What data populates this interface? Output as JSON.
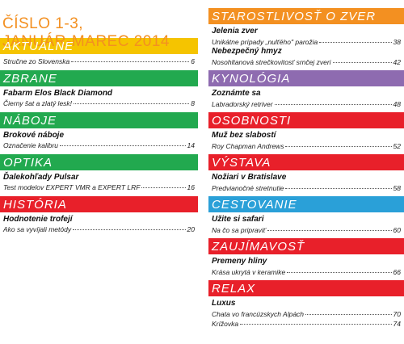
{
  "title": [
    "ČÍSLO 1-3,",
    "JANUÁR-MAREC 2014"
  ],
  "columns": [
    [
      {
        "heading": "AKTUÁLNE",
        "color": "#f5c400",
        "items": [
          {
            "subtitle": "Stručne zo Slovenska",
            "page": 6
          }
        ]
      },
      {
        "heading": "ZBRANE",
        "color": "#22a94f",
        "items": [
          {
            "title": "Fabarm Elos Black Diamond",
            "subtitle": "Čierny šat a zlatý lesk!",
            "page": 8
          }
        ]
      },
      {
        "heading": "NÁBOJE",
        "color": "#22a94f",
        "items": [
          {
            "title": "Brokové náboje",
            "subtitle": "Označenie kalibru",
            "page": 14
          }
        ]
      },
      {
        "heading": "OPTIKA",
        "color": "#22a94f",
        "items": [
          {
            "title": "Ďalekohľady Pulsar",
            "subtitle": "Test modelov EXPERT VMR a EXPERT LRF",
            "page": 16
          }
        ]
      },
      {
        "heading": "HISTÓRIA",
        "color": "#e8202a",
        "items": [
          {
            "title": "Hodnotenie trofejí",
            "subtitle": "Ako sa vyvíjali metódy",
            "page": 20
          }
        ]
      }
    ],
    [
      {
        "heading": "STAROSTLIVOSŤ O ZVER",
        "color": "#f39021",
        "items": [
          {
            "title": "Jelenia zver",
            "subtitle": "Unikátne prípady „nulťého\" parožia",
            "page": 38
          },
          {
            "title": "Nebezpečný hmyz",
            "subtitle": "Nosohltanová strečkovitosť srnčej zveri",
            "page": 42
          }
        ]
      },
      {
        "heading": "KYNOLÓGIA",
        "color": "#8e6bb0",
        "items": [
          {
            "title": "Zoznámte sa",
            "subtitle": "Labradorský retriver",
            "page": 48
          }
        ]
      },
      {
        "heading": "OSOBNOSTI",
        "color": "#e8202a",
        "items": [
          {
            "title": "Muž bez slabostí",
            "subtitle": "Roy Chapman Andrews",
            "page": 52
          }
        ]
      },
      {
        "heading": "VÝSTAVA",
        "color": "#e8202a",
        "items": [
          {
            "title": "Nožiari v Bratislave",
            "subtitle": "Predvianočné stretnutie",
            "page": 58
          }
        ]
      },
      {
        "heading": "CESTOVANIE",
        "color": "#2aa0d8",
        "items": [
          {
            "title": "Užite si safari",
            "subtitle": "Na čo sa pripraviť",
            "page": 60
          }
        ]
      },
      {
        "heading": "ZAUJÍMAVOSŤ",
        "color": "#e8202a",
        "items": [
          {
            "title": "Premeny hliny",
            "subtitle": "Krása ukrytá v keramike",
            "page": 66
          }
        ]
      },
      {
        "heading": "RELAX",
        "color": "#e8202a",
        "items": [
          {
            "title": "Luxus",
            "subtitle": "Chata vo francúzskych Alpách",
            "page": 70
          },
          {
            "subtitle": "Krížovka",
            "page": 74
          }
        ]
      }
    ]
  ]
}
